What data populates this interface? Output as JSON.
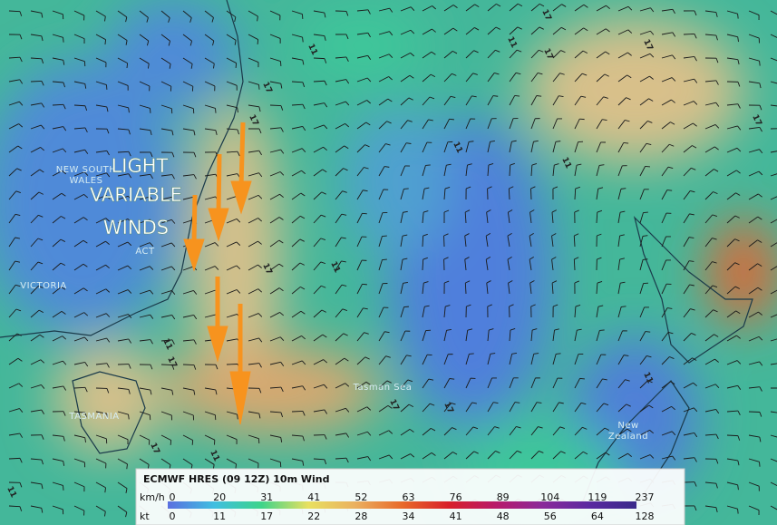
{
  "annotation": {
    "lines": [
      "LIGHT",
      "VARIABLE",
      "WINDS"
    ]
  },
  "places": [
    {
      "lines": [
        "NEW SOUTH",
        "WALES"
      ]
    },
    {
      "lines": [
        "ACT"
      ]
    },
    {
      "lines": [
        "VICTORIA"
      ]
    },
    {
      "lines": [
        "TASMANIA"
      ]
    },
    {
      "lines": [
        "Tasman Sea"
      ]
    },
    {
      "lines": [
        "New",
        "Zealand"
      ]
    }
  ],
  "contour_labels": [
    "17",
    "11",
    "17",
    "17",
    "11",
    "17",
    "11",
    "17",
    "11",
    "17",
    "11",
    "17",
    "11",
    "17",
    "11",
    "17",
    "11",
    "17",
    "11",
    "17"
  ],
  "legend": {
    "title": "ECMWF HRES (09 12Z) 10m Wind",
    "rows": [
      {
        "unit": "km/h",
        "values": [
          "0",
          "20",
          "31",
          "41",
          "52",
          "63",
          "76",
          "89",
          "104",
          "119",
          "237"
        ]
      },
      {
        "unit": "kt",
        "values": [
          "0",
          "11",
          "17",
          "22",
          "28",
          "34",
          "41",
          "48",
          "56",
          "64",
          "128"
        ]
      }
    ]
  }
}
